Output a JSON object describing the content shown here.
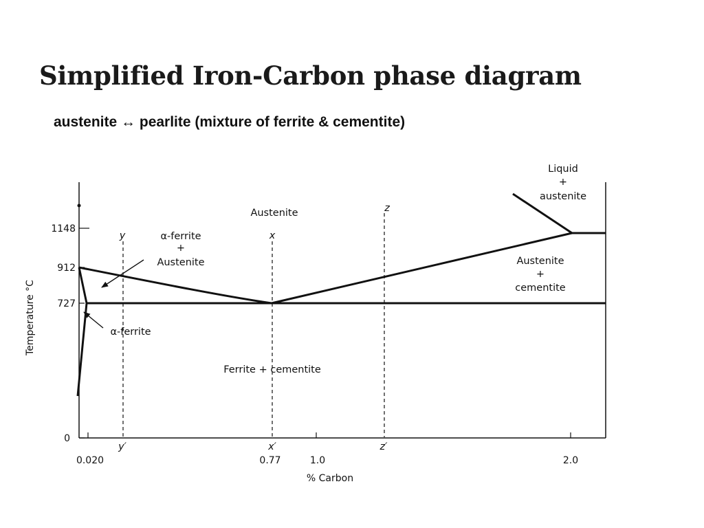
{
  "slide": {
    "title": "Simplified Iron-Carbon phase diagram",
    "subtitle": "austenite  ↔ pearlite (mixture of  ferrite & cementite)"
  },
  "diagram": {
    "axes": {
      "y_label": "Temperature °C",
      "x_label": "% Carbon",
      "y_ticks": [
        "1148",
        "912",
        "727",
        "0"
      ],
      "x_ticks": [
        "0.020",
        "0.77",
        "1.0",
        "2.0"
      ]
    },
    "regions": {
      "austenite": "Austenite",
      "alpha_plus_austenite": [
        "α-ferrite",
        "+",
        "Austenite"
      ],
      "liquid_plus_austenite": [
        "Liquid",
        "+",
        "austenite"
      ],
      "austenite_plus_cementite": [
        "Austenite",
        "+",
        "cementite"
      ],
      "alpha_ferrite": "α-ferrite",
      "ferrite_cementite": "Ferrite + cementite"
    },
    "markers": {
      "y": "y",
      "x": "x",
      "z": "z",
      "y_prime": "y′",
      "x_prime": "x′",
      "z_prime": "z′"
    }
  }
}
